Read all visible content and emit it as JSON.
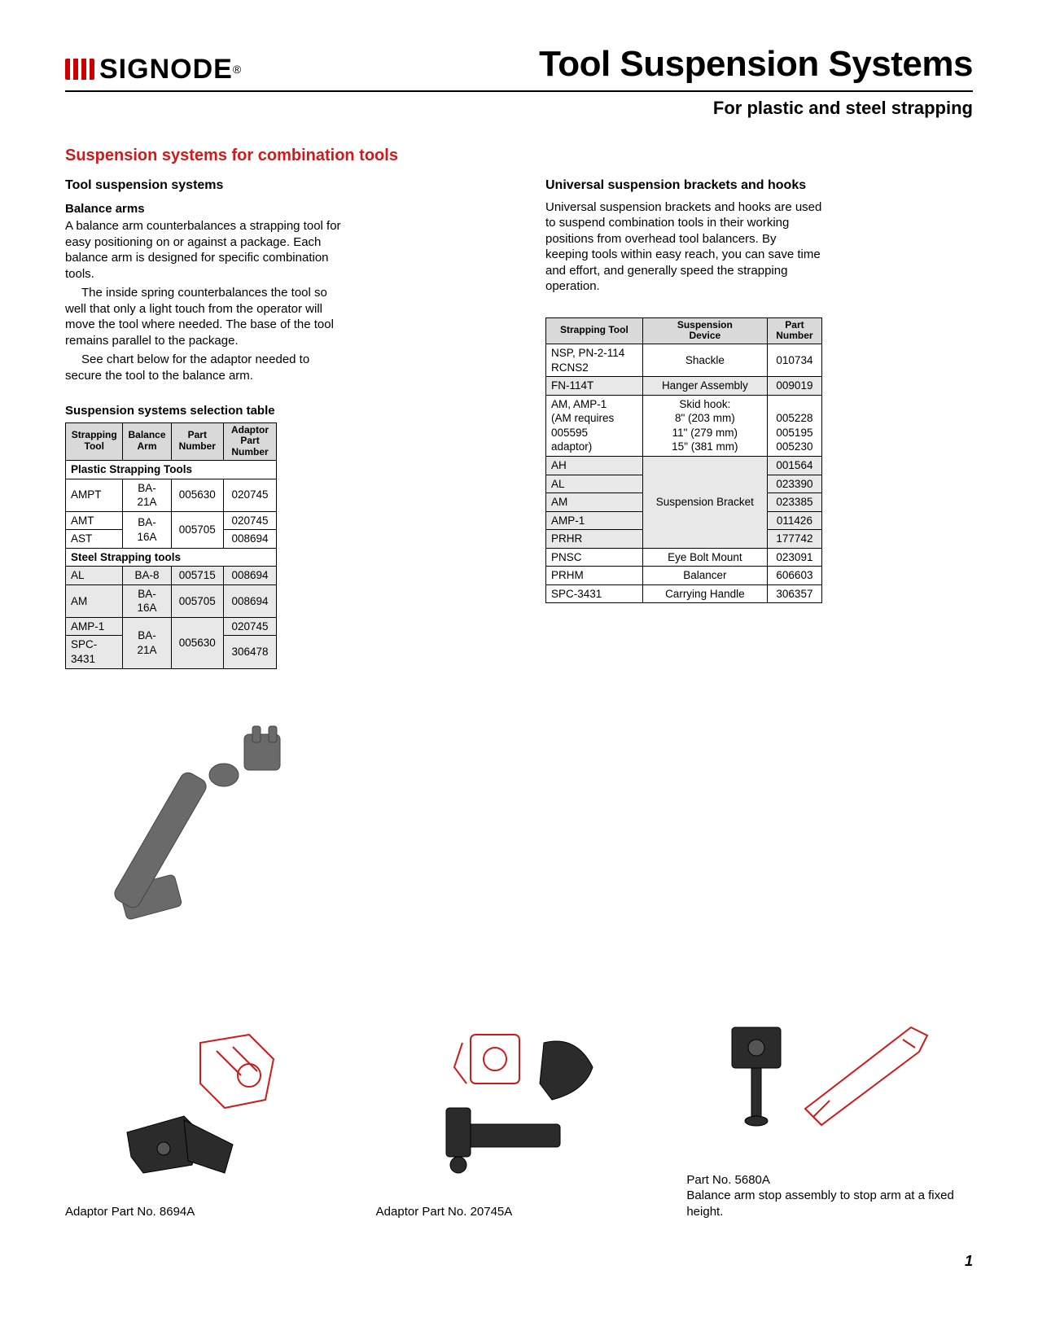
{
  "logo_text": "SIGNODE",
  "logo_reg": "®",
  "main_title": "Tool Suspension Systems",
  "sub_title": "For plastic and steel strapping",
  "red_heading": "Suspension systems for combination tools",
  "left": {
    "h3": "Tool suspension systems",
    "h4": "Balance arms",
    "p1": "A balance arm counterbalances a strapping tool for easy positioning on or against a package. Each balance arm is designed for specific combination tools.",
    "p2": "The inside spring counterbalances the tool so well that only a light touch from the operator will move the tool where needed. The base of the tool remains parallel to the package.",
    "p3": "See chart below for the adaptor needed to secure the tool to the balance arm.",
    "table_caption": "Suspension systems selection table",
    "th1a": "Strapping",
    "th1b": "Tool",
    "th2a": "Balance",
    "th2b": "Arm",
    "th3": "Part Number",
    "th4a": "Adaptor",
    "th4b": "Part Number",
    "section1": "Plastic Strapping Tools",
    "rows1": [
      {
        "tool": "AMPT",
        "arm": "BA-21A",
        "pn": "005630",
        "apn": "020745"
      },
      {
        "tool": "AMT",
        "arm": "BA-16A",
        "pn": "005705",
        "apn": "020745",
        "rowspan_arm": 2,
        "rowspan_pn": 2
      },
      {
        "tool": "AST",
        "apn": "008694"
      }
    ],
    "section2": "Steel Strapping tools",
    "rows2": [
      {
        "tool": "AL",
        "arm": "BA-8",
        "pn": "005715",
        "apn": "008694",
        "shaded": true
      },
      {
        "tool": "AM",
        "arm": "BA-16A",
        "pn": "005705",
        "apn": "008694",
        "shaded": true
      },
      {
        "tool": "AMP-1",
        "arm": "BA-21A",
        "pn": "005630",
        "apn": "020745",
        "shaded": true,
        "rowspan_arm": 2,
        "rowspan_pn": 2
      },
      {
        "tool": "SPC-3431",
        "apn": "306478",
        "shaded": true
      }
    ]
  },
  "right": {
    "h3": "Universal suspension brackets and hooks",
    "p1": "Universal suspension brackets and hooks are used to suspend combination tools in their working positions from overhead tool balancers. By keeping tools within easy reach, you can save time and effort, and generally speed  the strapping operation.",
    "th1": "Strapping Tool",
    "th2a": "Suspension",
    "th2b": "Device",
    "th3a": "Part",
    "th3b": "Number",
    "rows": [
      {
        "tool_html": "NSP, PN-2-114<br>RCNS2",
        "device": "Shackle",
        "pn": "010734",
        "center_device": true
      },
      {
        "tool": "FN-114T",
        "device": "Hanger Assembly",
        "pn": "009019",
        "shaded": true,
        "center_device": true
      },
      {
        "tool_html": "AM, AMP-1<br>(AM requires<br>005595<br>adaptor)",
        "device_html": "Skid hook:<br>8\" (203 mm)<br>11\" (279 mm)<br>15\" (381 mm)",
        "pn_html": "<br>005228<br>005195<br>005230",
        "center_device": true
      },
      {
        "tool": "AH",
        "device": "Suspension Bracket",
        "pn": "001564",
        "shaded": true,
        "rowspan_device": 5,
        "center_device": true
      },
      {
        "tool": "AL",
        "pn": "023390",
        "shaded": true
      },
      {
        "tool": "AM",
        "pn": "023385",
        "shaded": true
      },
      {
        "tool": "AMP-1",
        "pn": "011426",
        "shaded": true
      },
      {
        "tool": "PRHR",
        "pn": "177742",
        "shaded": true
      },
      {
        "tool": "PNSC",
        "device": "Eye Bolt Mount",
        "pn": "023091",
        "center_device": true
      },
      {
        "tool": "PRHM",
        "device": "Balancer",
        "pn": "606603",
        "center_device": true
      },
      {
        "tool": "SPC-3431",
        "device": "Carrying Handle",
        "pn": "306357",
        "center_device": true
      }
    ]
  },
  "adaptor1_label": "Adaptor Part No. 8694A",
  "adaptor2_label": "Adaptor Part No. 20745A",
  "stop_partno": "Part No. 5680A",
  "stop_text": "Balance arm stop assembly to stop arm at a fixed height.",
  "page_number": "1"
}
